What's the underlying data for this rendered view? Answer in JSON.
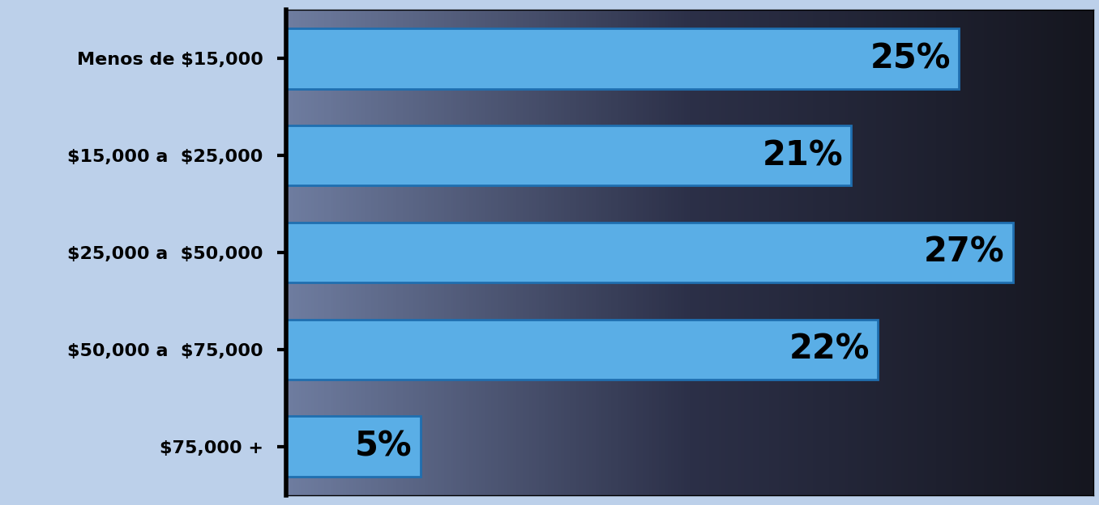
{
  "chart_data": {
    "type": "bar",
    "orientation": "horizontal",
    "categories": [
      "Menos de $15,000",
      "$15,000 a  $25,000",
      "$25,000 a  $50,000",
      "$50,000 a  $75,000",
      "$75,000 +"
    ],
    "values": [
      25,
      21,
      27,
      22,
      5
    ],
    "value_labels": [
      "25%",
      "21%",
      "27%",
      "22%",
      "5%"
    ],
    "data_labels": true,
    "color": "#5aaee6",
    "xlim": [
      0,
      30
    ],
    "tick_labels": "y",
    "grid": false
  }
}
